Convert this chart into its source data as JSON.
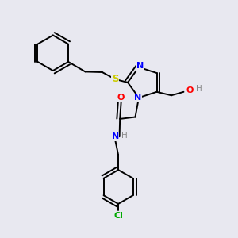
{
  "background_color": "#e8e8f0",
  "atom_colors": {
    "C": "#000000",
    "N": "#0000ff",
    "O": "#ff0000",
    "S": "#cccc00",
    "Cl": "#00aa00",
    "H": "#888888"
  },
  "figsize": [
    3.0,
    3.0
  ],
  "dpi": 100
}
